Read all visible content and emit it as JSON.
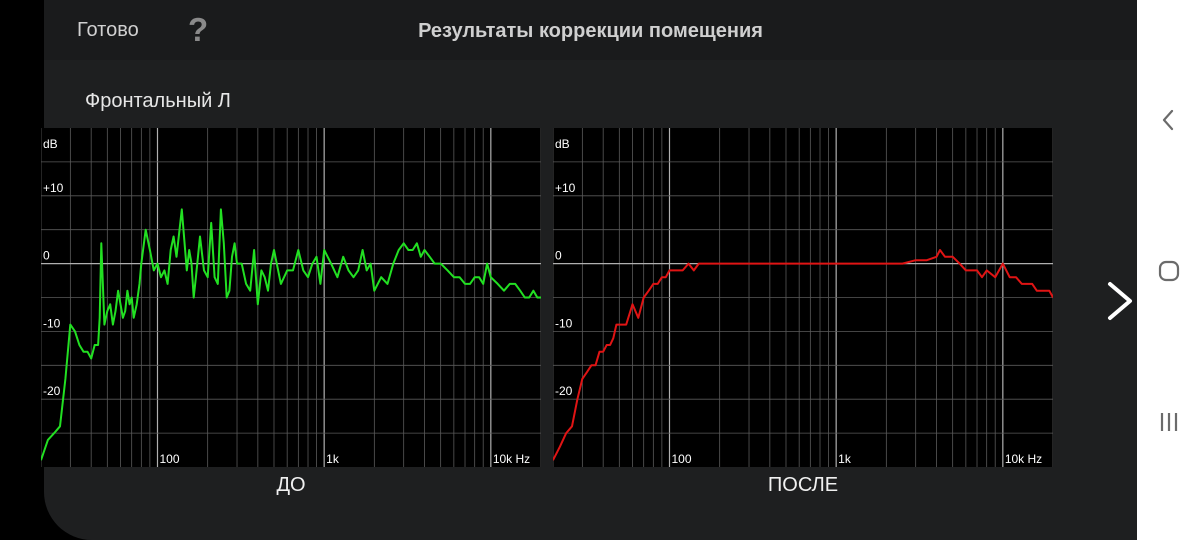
{
  "header": {
    "done_label": "Готово",
    "help_label": "?",
    "title": "Результаты коррекции помещения"
  },
  "channel_name": "Фронтальный Л",
  "icons": {
    "next": "chevron-right-icon",
    "back": "nav-back-icon",
    "home": "nav-home-icon",
    "recents": "nav-recents-icon"
  },
  "colors": {
    "before_line": "#22e022",
    "after_line": "#e01414",
    "grid": "#5a5a5a",
    "grid_major": "#b0b0b0"
  },
  "chart_data": [
    {
      "type": "line",
      "title": "ДО",
      "unit_label": "dB",
      "y_tick_labels": [
        "+10",
        "0",
        "-10",
        "-20"
      ],
      "y_ticks": [
        10,
        0,
        -10,
        -20
      ],
      "x_tick_labels": [
        "100",
        "1k",
        "10k Hz"
      ],
      "x_ticks": [
        100,
        1000,
        10000
      ],
      "xscale": "log",
      "xlim": [
        20,
        20000
      ],
      "ylim": [
        -30,
        20
      ],
      "grid": true,
      "series": [
        {
          "color": "#22e022",
          "x": [
            20,
            22,
            24,
            26,
            28,
            30,
            32,
            34,
            36,
            38,
            40,
            42,
            44,
            45,
            46,
            48,
            50,
            52,
            54,
            56,
            58,
            60,
            62,
            64,
            66,
            68,
            70,
            72,
            75,
            78,
            80,
            85,
            90,
            95,
            100,
            105,
            110,
            115,
            120,
            125,
            130,
            140,
            150,
            155,
            160,
            165,
            170,
            180,
            190,
            200,
            210,
            220,
            230,
            240,
            250,
            260,
            270,
            280,
            290,
            300,
            320,
            340,
            360,
            380,
            400,
            420,
            440,
            460,
            480,
            500,
            550,
            600,
            650,
            700,
            750,
            800,
            850,
            900,
            950,
            1000,
            1100,
            1200,
            1300,
            1400,
            1500,
            1600,
            1700,
            1800,
            1900,
            2000,
            2200,
            2400,
            2600,
            2800,
            3000,
            3200,
            3400,
            3600,
            3800,
            4000,
            4300,
            4600,
            5000,
            5500,
            6000,
            6500,
            7000,
            7500,
            8000,
            8500,
            9000,
            9500,
            10000,
            11000,
            12000,
            13000,
            14000,
            15000,
            16000,
            17000,
            18000,
            19000,
            20000
          ],
          "y": [
            -29,
            -26,
            -25,
            -24,
            -17,
            -9,
            -10,
            -12,
            -13,
            -13,
            -14,
            -12,
            -12,
            -8,
            3,
            -9,
            -7,
            -6,
            -9,
            -7,
            -4,
            -6,
            -8,
            -7,
            -4,
            -6,
            -5,
            -8,
            -6,
            -3,
            0,
            5,
            2,
            -1,
            0,
            -2,
            -1,
            -3,
            2,
            4,
            1,
            8,
            -1,
            2,
            0,
            -5,
            -2,
            4,
            -1,
            -2,
            6,
            -2,
            -3,
            8,
            3,
            -5,
            -4,
            1,
            3,
            0,
            0,
            -3,
            -4,
            2,
            -6,
            -1,
            -2,
            -4,
            0,
            2,
            -3,
            -1,
            -1,
            2,
            -1,
            -2,
            0,
            1,
            -3,
            2,
            0,
            -2,
            1,
            -1,
            -2,
            -1,
            2,
            -1,
            0,
            -4,
            -2,
            -3,
            0,
            2,
            3,
            2,
            2,
            3,
            1,
            2,
            1,
            0,
            0,
            -1,
            -2,
            -2,
            -3,
            -3,
            -2,
            -2,
            -3,
            0,
            -2,
            -3,
            -4,
            -3,
            -3,
            -4,
            -5,
            -5,
            -4,
            -5,
            -5
          ]
        }
      ]
    },
    {
      "type": "line",
      "title": "ПОСЛЕ",
      "unit_label": "dB",
      "y_tick_labels": [
        "+10",
        "0",
        "-10",
        "-20"
      ],
      "y_ticks": [
        10,
        0,
        -10,
        -20
      ],
      "x_tick_labels": [
        "100",
        "1k",
        "10k Hz"
      ],
      "x_ticks": [
        100,
        1000,
        10000
      ],
      "xscale": "log",
      "xlim": [
        20,
        20000
      ],
      "ylim": [
        -30,
        20
      ],
      "grid": true,
      "series": [
        {
          "color": "#e01414",
          "x": [
            20,
            22,
            24,
            26,
            28,
            30,
            32,
            34,
            36,
            38,
            40,
            42,
            44,
            46,
            48,
            50,
            55,
            60,
            65,
            70,
            75,
            80,
            85,
            90,
            95,
            100,
            110,
            120,
            130,
            140,
            150,
            160,
            180,
            200,
            250,
            300,
            400,
            500,
            600,
            700,
            800,
            900,
            1000,
            1200,
            1500,
            1800,
            2000,
            2500,
            3000,
            3500,
            4000,
            4200,
            4500,
            5000,
            5500,
            6000,
            6500,
            7000,
            7500,
            8000,
            9000,
            10000,
            11000,
            12000,
            13000,
            14000,
            15000,
            16000,
            17000,
            18000,
            19000,
            20000
          ],
          "y": [
            -29,
            -27,
            -25,
            -24,
            -20,
            -17,
            -16,
            -15,
            -15,
            -13,
            -13,
            -12,
            -12,
            -11,
            -9,
            -9,
            -9,
            -6,
            -8,
            -5,
            -4,
            -3,
            -3,
            -2,
            -2,
            -1,
            -1,
            -1,
            0,
            -1,
            0,
            0,
            0,
            0,
            0,
            0,
            0,
            0,
            0,
            0,
            0,
            0,
            0,
            0,
            0,
            0,
            0,
            0,
            0.5,
            0.5,
            1,
            2,
            1,
            1,
            0,
            -1,
            -1,
            -1,
            -2,
            -1,
            -2,
            0,
            -2,
            -2,
            -3,
            -3,
            -3,
            -4,
            -4,
            -4,
            -4,
            -5
          ]
        }
      ]
    }
  ]
}
